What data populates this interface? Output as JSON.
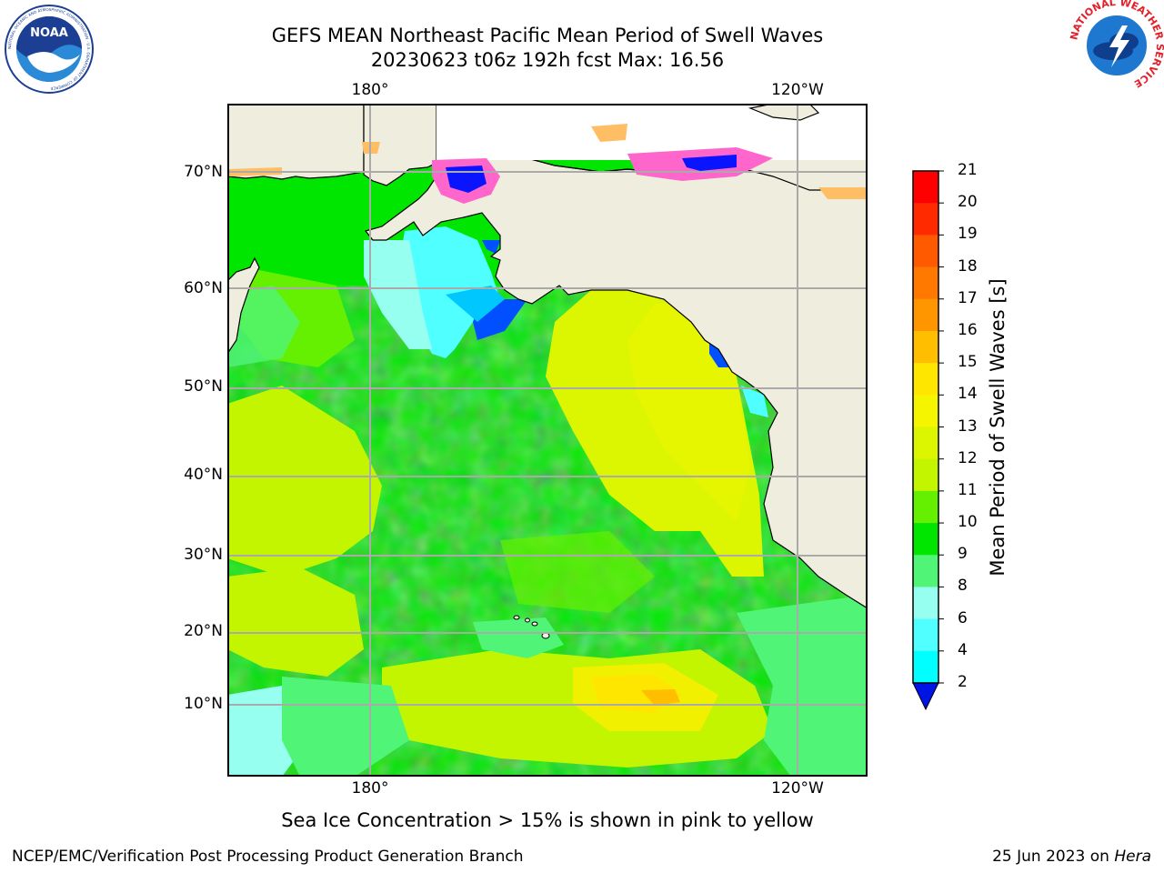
{
  "header": {
    "title_line1": "GEFS MEAN Northeast Pacific Mean Period of Swell Waves",
    "title_line2": "20230623 t06z 192h fcst   Max: 16.56"
  },
  "map": {
    "lon_labels": [
      "180°",
      "120°W"
    ],
    "lat_labels": [
      "70°N",
      "60°N",
      "50°N",
      "40°N",
      "30°N",
      "20°N",
      "10°N"
    ],
    "grid": true
  },
  "colorbar": {
    "title": "Mean Period of Swell Waves [s]",
    "levels": [
      "21",
      "20",
      "19",
      "18",
      "17",
      "16",
      "15",
      "14",
      "13",
      "12",
      "11",
      "10",
      "9",
      "8",
      "6",
      "4",
      "2"
    ],
    "colors": [
      "#ff0000",
      "#ff2a00",
      "#ff5a00",
      "#ff7800",
      "#ff9600",
      "#ffbe00",
      "#ffe600",
      "#f5f500",
      "#dcf500",
      "#c3f500",
      "#64f000",
      "#00e600",
      "#50f578",
      "#96fff0",
      "#50ffff",
      "#00ffff",
      "#00c8ff",
      "#0078ff"
    ]
  },
  "legend": {
    "ice_note": "Sea Ice Concentration > 15% is shown in pink to yellow"
  },
  "footer": {
    "left": "NCEP/EMC/Verification Post Processing Product Generation Branch",
    "right_date": "25 Jun 2023 on ",
    "right_machine": "Hera"
  },
  "logos": {
    "noaa_text": "NOAA",
    "noaa_ring": "NATIONAL OCEANIC AND ATMOSPHERIC ADMINISTRATION · U.S. DEPARTMENT OF COMMERCE",
    "nws_ring": "NATIONAL WEATHER SERVICE"
  }
}
